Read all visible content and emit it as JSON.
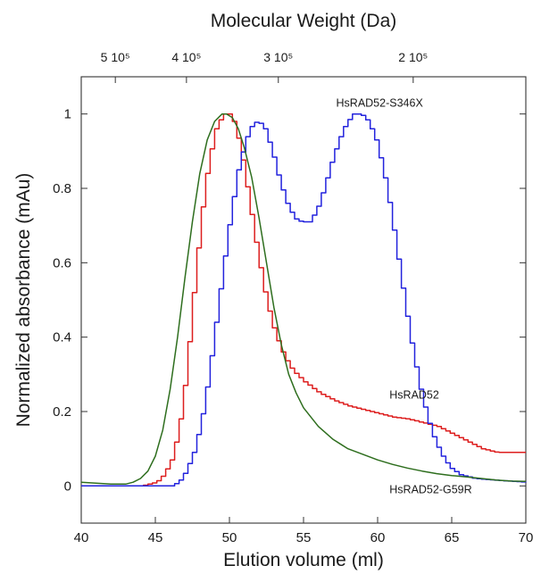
{
  "chart_data": {
    "type": "line",
    "title": "Molecular Weight (Da)",
    "xlabel": "Elution volume (ml)",
    "ylabel": "Normalized absorbance (mAu)",
    "xlim": [
      40,
      70
    ],
    "ylim": [
      -0.1,
      1.1
    ],
    "x_ticks": [
      "40",
      "45",
      "50",
      "55",
      "60",
      "65",
      "70"
    ],
    "y_ticks": [
      "0",
      "0.2",
      "0.4",
      "0.6",
      "0.8",
      "1"
    ],
    "top_axis": {
      "label": "Molecular Weight (Da)",
      "ticks": [
        {
          "x": 42.3,
          "label": "5 10⁵"
        },
        {
          "x": 47.1,
          "label": "4 10⁵"
        },
        {
          "x": 53.3,
          "label": "3 10⁵"
        },
        {
          "x": 62.4,
          "label": "2 10⁵"
        }
      ]
    },
    "grid": false,
    "series": [
      {
        "name": "HsRAD52",
        "color": "#dd1e1e",
        "step": true,
        "x": [
          40,
          42,
          44,
          45,
          45.5,
          46,
          46.5,
          47,
          47.5,
          48,
          48.5,
          49,
          49.5,
          49.8,
          50,
          50.3,
          50.7,
          51.2,
          51.8,
          52.4,
          53,
          53.6,
          54.2,
          55,
          56,
          57,
          58,
          59,
          60,
          61,
          62,
          63,
          64,
          65,
          66,
          67,
          68,
          70
        ],
        "values": [
          0.0,
          0.0,
          0.0,
          0.01,
          0.03,
          0.07,
          0.15,
          0.3,
          0.52,
          0.72,
          0.87,
          0.96,
          1.0,
          1.0,
          1.0,
          0.97,
          0.9,
          0.78,
          0.63,
          0.5,
          0.41,
          0.35,
          0.31,
          0.28,
          0.25,
          0.23,
          0.215,
          0.205,
          0.195,
          0.185,
          0.18,
          0.17,
          0.16,
          0.14,
          0.12,
          0.1,
          0.09,
          0.09
        ]
      },
      {
        "name": "HsRAD52-S346X",
        "color": "#2222dd",
        "step": true,
        "x": [
          40,
          44,
          46,
          46.5,
          47,
          47.5,
          48,
          48.5,
          49,
          49.5,
          50,
          50.5,
          51,
          51.5,
          51.9,
          52.3,
          52.8,
          53.3,
          53.8,
          54.3,
          54.8,
          55.3,
          55.8,
          56.3,
          56.8,
          57.3,
          57.8,
          58.3,
          58.8,
          59.3,
          59.8,
          60.3,
          60.8,
          61.3,
          61.8,
          62.3,
          62.8,
          63.3,
          63.8,
          64.3,
          64.8,
          65.5,
          66.5,
          68,
          70
        ],
        "values": [
          0.0,
          0.0,
          0.0,
          0.01,
          0.04,
          0.09,
          0.17,
          0.29,
          0.44,
          0.59,
          0.73,
          0.85,
          0.93,
          0.975,
          0.98,
          0.96,
          0.9,
          0.82,
          0.76,
          0.72,
          0.71,
          0.71,
          0.74,
          0.8,
          0.87,
          0.93,
          0.975,
          1.0,
          1.0,
          0.98,
          0.93,
          0.85,
          0.74,
          0.61,
          0.48,
          0.36,
          0.26,
          0.18,
          0.12,
          0.08,
          0.05,
          0.03,
          0.02,
          0.015,
          0.01
        ]
      },
      {
        "name": "HsRAD52-G59R",
        "color": "#2e6e1e",
        "step": false,
        "x": [
          40,
          42,
          43,
          43.5,
          44,
          44.5,
          45,
          45.5,
          46,
          46.5,
          47,
          47.5,
          48,
          48.5,
          49,
          49.5,
          49.8,
          50.2,
          50.6,
          51,
          51.5,
          52,
          52.5,
          53,
          53.5,
          54,
          54.5,
          55,
          56,
          57,
          58,
          59,
          60,
          61,
          62,
          63,
          64,
          65,
          66,
          67,
          68,
          69,
          70
        ],
        "values": [
          0.01,
          0.005,
          0.005,
          0.01,
          0.02,
          0.04,
          0.08,
          0.15,
          0.26,
          0.4,
          0.56,
          0.71,
          0.84,
          0.93,
          0.98,
          1.0,
          1.0,
          0.99,
          0.96,
          0.91,
          0.83,
          0.72,
          0.6,
          0.48,
          0.38,
          0.3,
          0.25,
          0.21,
          0.16,
          0.125,
          0.1,
          0.085,
          0.07,
          0.058,
          0.048,
          0.04,
          0.033,
          0.028,
          0.024,
          0.02,
          0.016,
          0.013,
          0.012
        ]
      }
    ],
    "annotations": [
      {
        "text": "HsRAD52-S346X",
        "x": 57.2,
        "y": 1.02
      },
      {
        "text": "HsRAD52",
        "x": 60.8,
        "y": 0.235
      },
      {
        "text": "HsRAD52-G59R",
        "x": 60.8,
        "y": -0.02
      }
    ]
  }
}
